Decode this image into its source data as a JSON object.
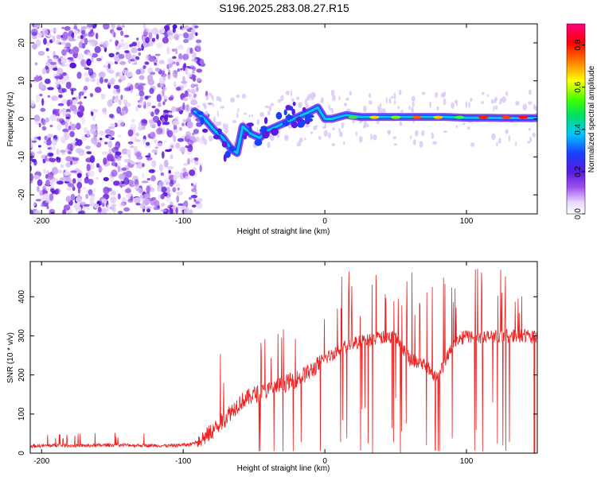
{
  "title": "S196.2025.283.08.27.R15",
  "chart_data": [
    {
      "type": "heatmap",
      "title": "S196.2025.283.08.27.R15",
      "xlabel": "Height of straight line (km)",
      "ylabel": "Frequency (Hz)",
      "xlim": [
        -208,
        150
      ],
      "ylim": [
        -25,
        25
      ],
      "xticks": [
        -200,
        -100,
        0,
        100
      ],
      "yticks": [
        20,
        10,
        0,
        -10,
        -20
      ],
      "xtick_labels": [
        "-200",
        "-100",
        "0",
        "100"
      ],
      "ytick_labels": [
        "20",
        "10",
        "0",
        "-10",
        "-20"
      ],
      "colorbar": {
        "label": "Normalized spectral amplitude",
        "range": [
          0,
          0.9
        ],
        "ticks": [
          0.0,
          0.2,
          0.4,
          0.6,
          0.8
        ],
        "tick_labels": [
          "0.0",
          "0.2",
          "0.4",
          "0.6",
          "0.8"
        ]
      },
      "trace": {
        "x": [
          -92,
          -85,
          -78,
          -72,
          -66,
          -62,
          -58,
          -52,
          -46,
          -40,
          -34,
          -28,
          -22,
          -16,
          -10,
          -5,
          0,
          5,
          10,
          15,
          25,
          40,
          55,
          70,
          85,
          100,
          115,
          130,
          150
        ],
        "y": [
          2,
          0,
          -3,
          -5,
          -8,
          -9,
          -2,
          -4,
          -5,
          -3,
          -2,
          -1,
          0,
          1,
          2,
          3,
          0,
          0,
          0.5,
          1,
          0.5,
          0.5,
          0.5,
          0.5,
          0.5,
          0.3,
          0.3,
          0.2,
          0.2
        ]
      }
    },
    {
      "type": "line",
      "xlabel": "Height of straight line (km)",
      "ylabel": "SNR (10 * v/v)",
      "xlim": [
        -208,
        150
      ],
      "ylim": [
        0,
        490
      ],
      "xticks": [
        -200,
        -100,
        0,
        100
      ],
      "yticks": [
        0,
        100,
        200,
        300,
        400
      ],
      "xtick_labels": [
        "-200",
        "-100",
        "0",
        "100"
      ],
      "ytick_labels": [
        "0",
        "100",
        "200",
        "300",
        "400"
      ],
      "series": [
        {
          "name": "SNR",
          "color": "#ee2222",
          "x": [
            -208,
            -190,
            -170,
            -150,
            -130,
            -110,
            -95,
            -85,
            -75,
            -68,
            -60,
            -50,
            -40,
            -30,
            -20,
            -10,
            0,
            10,
            20,
            30,
            40,
            50,
            60,
            70,
            80,
            90,
            100,
            110,
            120,
            130,
            140,
            150
          ],
          "y": [
            18,
            20,
            19,
            21,
            20,
            19,
            22,
            40,
            70,
            100,
            130,
            150,
            160,
            175,
            190,
            210,
            240,
            265,
            280,
            290,
            295,
            300,
            240,
            230,
            190,
            280,
            300,
            295,
            300,
            300,
            300,
            295
          ]
        }
      ]
    }
  ]
}
